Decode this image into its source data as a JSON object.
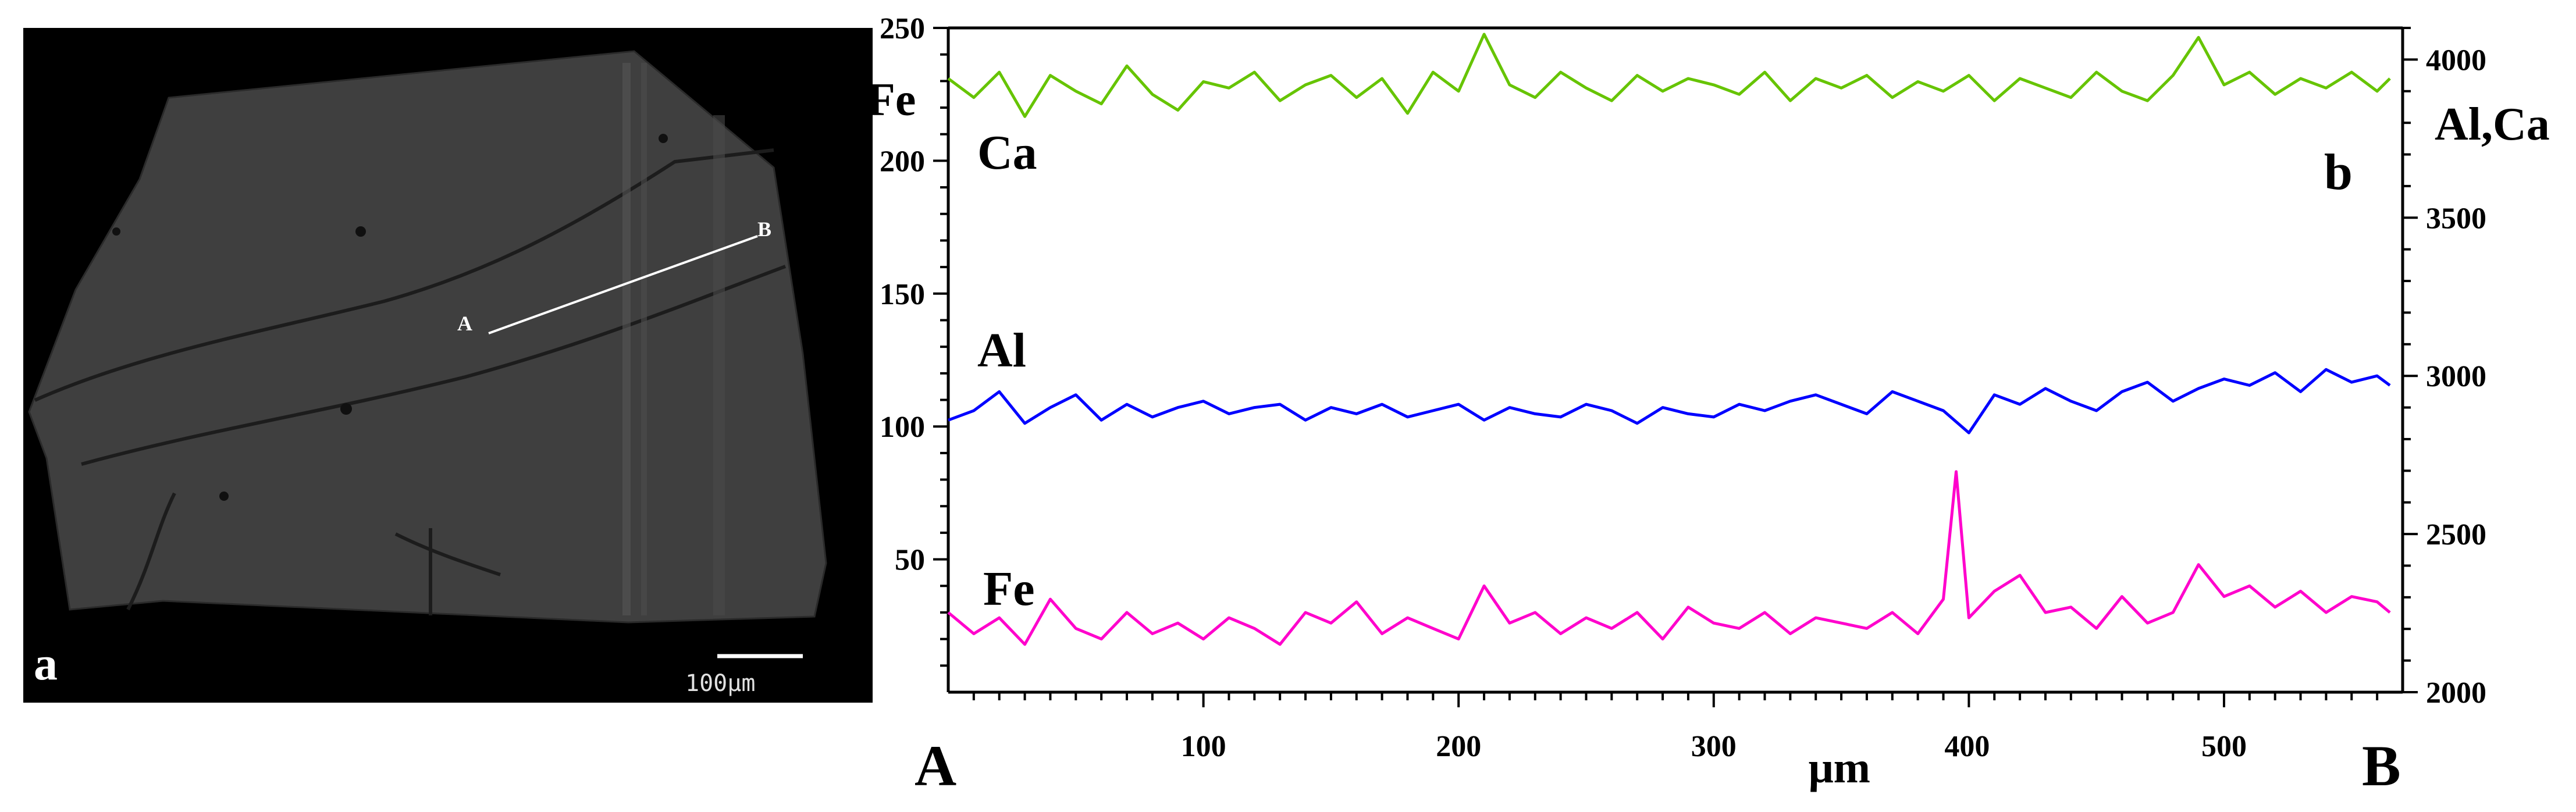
{
  "panel_a": {
    "label": "a",
    "point_a": "A",
    "point_b": "B",
    "scale_bar": "100μm"
  },
  "chart_data": {
    "type": "line",
    "panel_label": "b",
    "xlabel": "μm",
    "x_start_label": "A",
    "x_end_label": "B",
    "x_ticks": [
      100,
      200,
      300,
      400,
      500
    ],
    "xlim": [
      0,
      570
    ],
    "y_left_label": "Fe",
    "y_left_ticks": [
      50,
      100,
      150,
      200,
      250
    ],
    "y_left_lim": [
      0,
      250
    ],
    "y_right_label": "Al,Ca",
    "y_right_ticks": [
      2000,
      2500,
      3000,
      3500,
      4000
    ],
    "y_right_lim": [
      2000,
      4100
    ],
    "grid": false,
    "series": [
      {
        "name": "Ca",
        "axis": "right",
        "color": "#66c400",
        "x": [
          0,
          10,
          20,
          30,
          40,
          50,
          60,
          70,
          80,
          90,
          100,
          110,
          120,
          130,
          140,
          150,
          160,
          170,
          180,
          190,
          200,
          210,
          220,
          230,
          240,
          250,
          260,
          270,
          280,
          290,
          300,
          310,
          320,
          330,
          340,
          350,
          360,
          370,
          380,
          390,
          400,
          410,
          420,
          430,
          440,
          450,
          460,
          470,
          480,
          490,
          500,
          510,
          520,
          530,
          540,
          550,
          560,
          565
        ],
        "values": [
          3940,
          3880,
          3960,
          3820,
          3950,
          3900,
          3860,
          3980,
          3890,
          3840,
          3930,
          3910,
          3960,
          3870,
          3920,
          3950,
          3880,
          3940,
          3830,
          3960,
          3900,
          4080,
          3920,
          3880,
          3960,
          3910,
          3870,
          3950,
          3900,
          3940,
          3920,
          3890,
          3960,
          3870,
          3940,
          3910,
          3950,
          3880,
          3930,
          3900,
          3950,
          3870,
          3940,
          3910,
          3880,
          3960,
          3900,
          3870,
          3950,
          4070,
          3920,
          3960,
          3890,
          3940,
          3910,
          3960,
          3900,
          3940
        ]
      },
      {
        "name": "Al",
        "axis": "right",
        "color": "#0000ff",
        "x": [
          0,
          10,
          20,
          30,
          40,
          50,
          60,
          70,
          80,
          90,
          100,
          110,
          120,
          130,
          140,
          150,
          160,
          170,
          180,
          190,
          200,
          210,
          220,
          230,
          240,
          250,
          260,
          270,
          280,
          290,
          300,
          310,
          320,
          330,
          340,
          350,
          360,
          370,
          380,
          390,
          400,
          410,
          420,
          430,
          440,
          450,
          460,
          470,
          480,
          490,
          500,
          510,
          520,
          530,
          540,
          550,
          560,
          565
        ],
        "values": [
          2860,
          2890,
          2950,
          2850,
          2900,
          2940,
          2860,
          2910,
          2870,
          2900,
          2920,
          2880,
          2900,
          2910,
          2860,
          2900,
          2880,
          2910,
          2870,
          2890,
          2910,
          2860,
          2900,
          2880,
          2870,
          2910,
          2890,
          2850,
          2900,
          2880,
          2870,
          2910,
          2890,
          2920,
          2940,
          2910,
          2880,
          2950,
          2920,
          2890,
          2820,
          2940,
          2910,
          2960,
          2920,
          2890,
          2950,
          2980,
          2920,
          2960,
          2990,
          2970,
          3010,
          2950,
          3020,
          2980,
          3000,
          2970
        ]
      },
      {
        "name": "Fe",
        "axis": "left",
        "color": "#ff00cc",
        "x": [
          0,
          10,
          20,
          30,
          40,
          50,
          60,
          70,
          80,
          90,
          100,
          110,
          120,
          130,
          140,
          150,
          160,
          170,
          180,
          190,
          200,
          210,
          220,
          230,
          240,
          250,
          260,
          270,
          280,
          290,
          300,
          310,
          320,
          330,
          340,
          350,
          360,
          370,
          380,
          390,
          395,
          400,
          410,
          420,
          430,
          440,
          450,
          460,
          470,
          480,
          490,
          500,
          510,
          520,
          530,
          540,
          550,
          560,
          565
        ],
        "values": [
          30,
          22,
          28,
          18,
          35,
          24,
          20,
          30,
          22,
          26,
          20,
          28,
          24,
          18,
          30,
          26,
          34,
          22,
          28,
          24,
          20,
          40,
          26,
          30,
          22,
          28,
          24,
          30,
          20,
          32,
          26,
          24,
          30,
          22,
          28,
          26,
          24,
          30,
          22,
          35,
          83,
          28,
          38,
          44,
          30,
          32,
          24,
          36,
          26,
          30,
          48,
          36,
          40,
          32,
          38,
          30,
          36,
          34,
          30
        ]
      }
    ]
  }
}
